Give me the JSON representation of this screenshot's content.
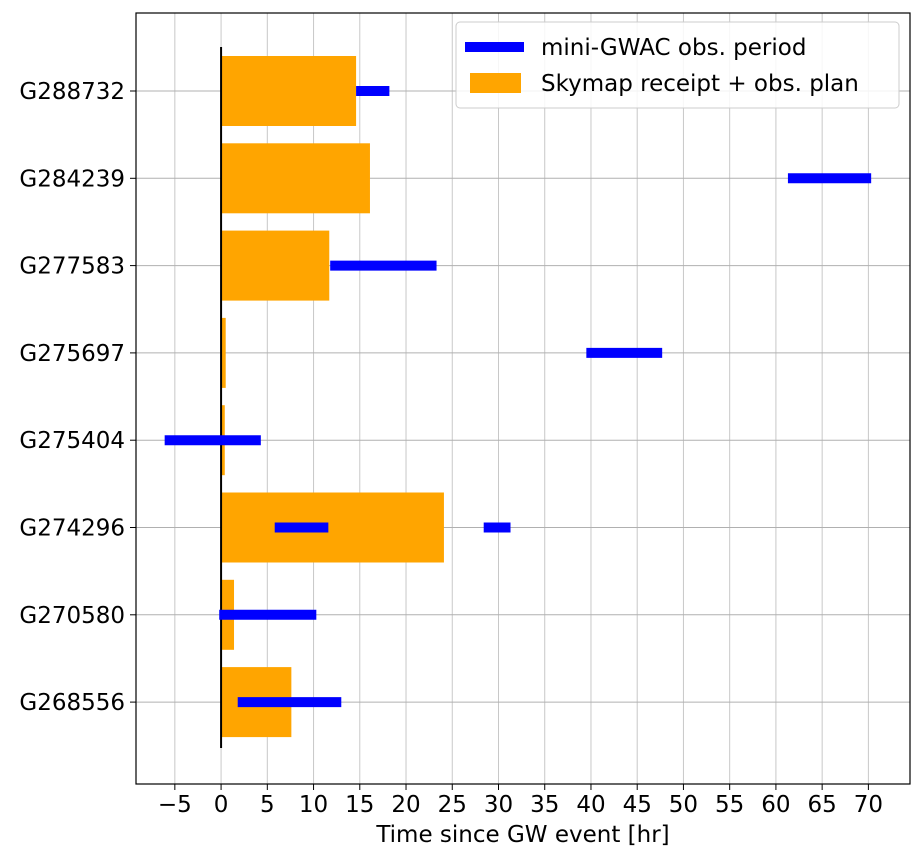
{
  "chart_data": {
    "type": "bar",
    "orientation": "horizontal",
    "xlabel": "Time since GW event [hr]",
    "ylabel": "",
    "xlim": [
      -9.2,
      74.5
    ],
    "xticks": [
      -5,
      0,
      5,
      10,
      15,
      20,
      25,
      30,
      35,
      40,
      45,
      50,
      55,
      60,
      65,
      70
    ],
    "xtick_labels": [
      "−5",
      "0",
      "5",
      "10",
      "15",
      "20",
      "25",
      "30",
      "35",
      "40",
      "45",
      "50",
      "55",
      "60",
      "65",
      "70"
    ],
    "grid": true,
    "legend_position": "top-right",
    "categories": [
      "G288732",
      "G284239",
      "G277583",
      "G275697",
      "G275404",
      "G274296",
      "G270580",
      "G268556"
    ],
    "series": [
      {
        "name": "Skymap receipt + obs. plan",
        "kind": "bar",
        "color": "#FFA500",
        "values": [
          {
            "category": "G288732",
            "start": 0,
            "end": 14.6
          },
          {
            "category": "G284239",
            "start": 0,
            "end": 16.1
          },
          {
            "category": "G277583",
            "start": 0,
            "end": 11.7
          },
          {
            "category": "G275697",
            "start": 0,
            "end": 0.5
          },
          {
            "category": "G275404",
            "start": 0,
            "end": 0.4
          },
          {
            "category": "G274296",
            "start": 0,
            "end": 24.1
          },
          {
            "category": "G270580",
            "start": 0,
            "end": 1.4
          },
          {
            "category": "G268556",
            "start": 0,
            "end": 7.6
          }
        ]
      },
      {
        "name": "mini-GWAC obs. period",
        "kind": "segment",
        "color": "#0000FF",
        "values": [
          {
            "category": "G288732",
            "start": 14.6,
            "end": 18.2
          },
          {
            "category": "G284239",
            "start": 61.3,
            "end": 70.3
          },
          {
            "category": "G277583",
            "start": 11.8,
            "end": 23.3
          },
          {
            "category": "G275697",
            "start": 39.5,
            "end": 47.7
          },
          {
            "category": "G275404",
            "start": -6.1,
            "end": 4.3
          },
          {
            "category": "G274296",
            "start": 5.8,
            "end": 11.6
          },
          {
            "category": "G274296",
            "start": 28.4,
            "end": 31.3
          },
          {
            "category": "G270580",
            "start": -0.2,
            "end": 10.3
          },
          {
            "category": "G268556",
            "start": 1.8,
            "end": 13.0
          }
        ]
      }
    ],
    "annotations": [
      {
        "type": "vertical-line",
        "x": 0,
        "color": "#000000"
      }
    ]
  }
}
